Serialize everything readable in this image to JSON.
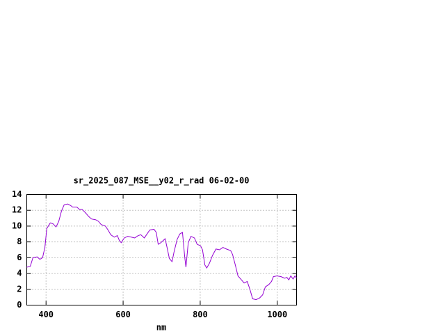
{
  "chart_data": {
    "type": "line",
    "title": "sr_2025_087_MSE__y02_r_rad 06-02-00",
    "x_label": "nm",
    "x": [
      350,
      359,
      366,
      377,
      384,
      391,
      397,
      402,
      411,
      418,
      426,
      433,
      440,
      447,
      456,
      464,
      469,
      480,
      487,
      494,
      502,
      511,
      518,
      529,
      536,
      543,
      554,
      561,
      568,
      577,
      585,
      590,
      595,
      603,
      612,
      622,
      630,
      639,
      646,
      655,
      662,
      669,
      680,
      686,
      691,
      698,
      709,
      714,
      720,
      727,
      732,
      740,
      747,
      754,
      760,
      763,
      769,
      776,
      785,
      792,
      801,
      806,
      812,
      817,
      824,
      832,
      841,
      850,
      859,
      868,
      879,
      884,
      891,
      898,
      907,
      914,
      922,
      929,
      936,
      945,
      954,
      962,
      969,
      978,
      985,
      990,
      999,
      1010,
      1019,
      1025,
      1030,
      1035,
      1041,
      1046,
      1050
    ],
    "series": [
      {
        "color": "#9400d3",
        "values": [
          4.8,
          4.9,
          6.0,
          6.1,
          5.8,
          6.0,
          7.3,
          9.7,
          10.4,
          10.3,
          9.9,
          10.6,
          11.9,
          12.7,
          12.8,
          12.6,
          12.4,
          12.4,
          12.1,
          12.1,
          11.7,
          11.2,
          10.9,
          10.8,
          10.6,
          10.2,
          10.0,
          9.5,
          8.9,
          8.6,
          8.8,
          8.2,
          7.9,
          8.5,
          8.7,
          8.6,
          8.5,
          8.8,
          8.9,
          8.5,
          9.0,
          9.5,
          9.6,
          9.2,
          7.7,
          7.9,
          8.4,
          7.3,
          5.9,
          5.5,
          6.7,
          8.3,
          9.0,
          9.2,
          6.0,
          4.8,
          7.9,
          8.7,
          8.5,
          7.7,
          7.5,
          7.0,
          5.1,
          4.7,
          5.3,
          6.3,
          7.1,
          7.0,
          7.3,
          7.1,
          6.9,
          6.4,
          5.1,
          3.7,
          3.2,
          2.8,
          3.0,
          2.0,
          0.8,
          0.7,
          0.9,
          1.3,
          2.3,
          2.6,
          3.0,
          3.6,
          3.7,
          3.6,
          3.4,
          3.5,
          3.2,
          3.7,
          3.3,
          3.7,
          3.4
        ]
      }
    ],
    "xlim": [
      350,
      1050
    ],
    "xticks": [
      400,
      600,
      800,
      1000
    ],
    "ylim": [
      0,
      14
    ],
    "yticks": [
      0,
      2,
      4,
      6,
      8,
      10,
      12,
      14
    ],
    "grid": true
  }
}
